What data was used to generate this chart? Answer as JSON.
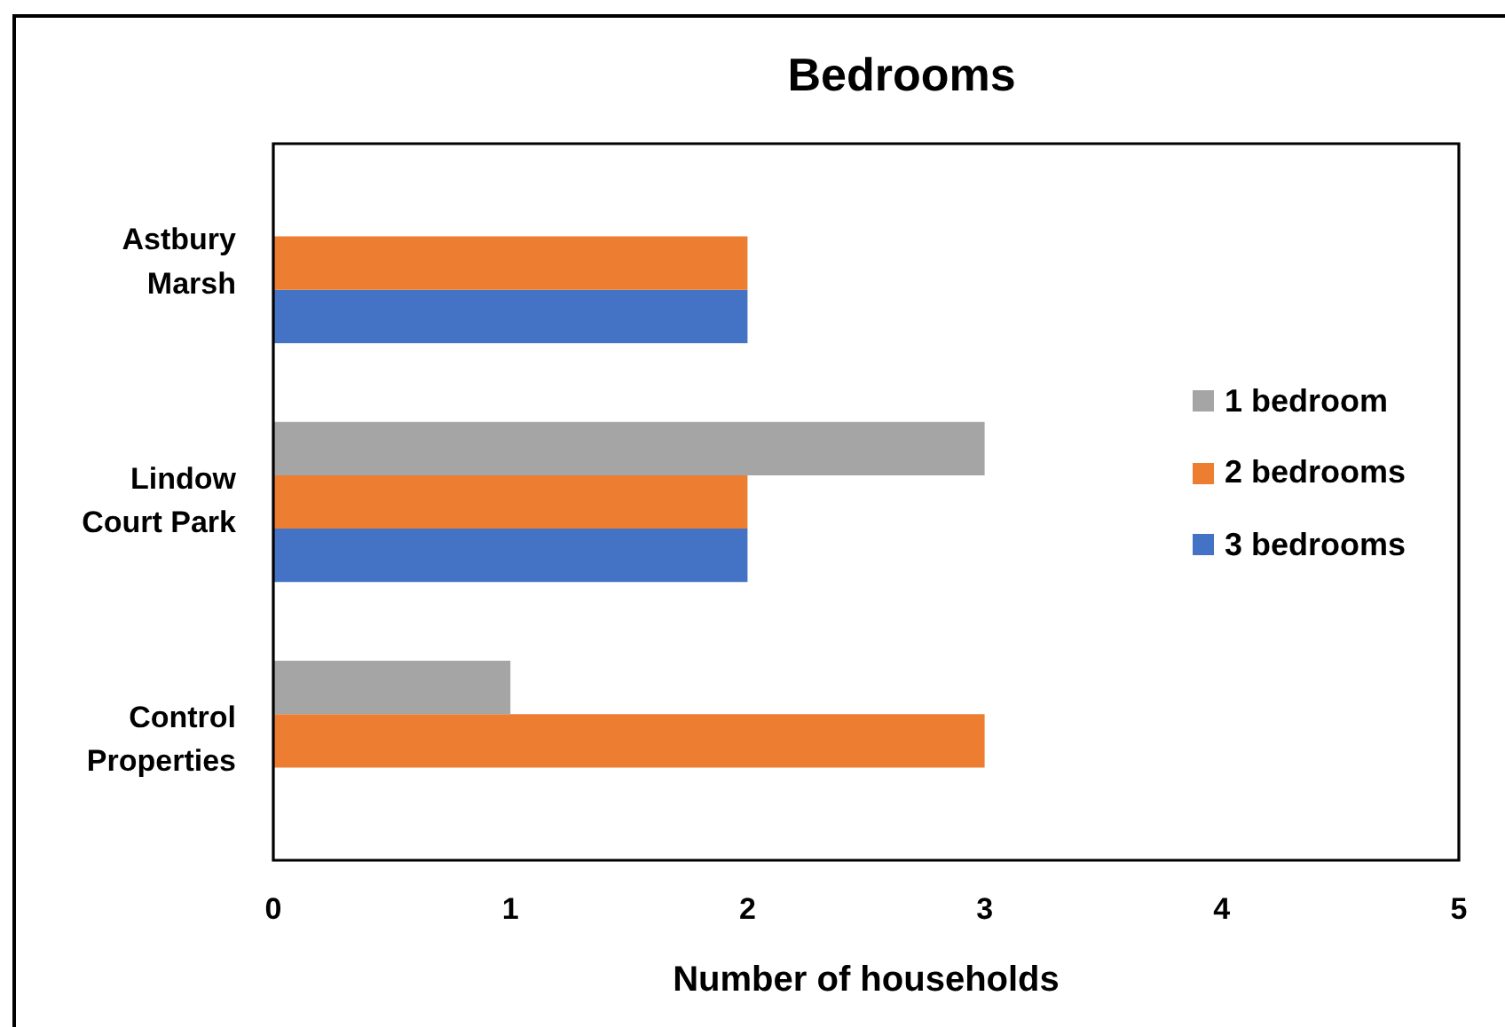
{
  "chart_data": {
    "type": "bar",
    "orientation": "horizontal",
    "title": "Bedrooms",
    "xlabel": "Number of households",
    "categories": [
      "Astbury Marsh",
      "Lindow Court Park",
      "Control Properties"
    ],
    "series": [
      {
        "name": "1 bedroom",
        "color": "#a5a5a5",
        "values": [
          0,
          3,
          1
        ]
      },
      {
        "name": "2 bedrooms",
        "color": "#ed7d31",
        "values": [
          2,
          2,
          3
        ]
      },
      {
        "name": "3 bedrooms",
        "color": "#4472c4",
        "values": [
          2,
          2,
          0
        ]
      }
    ],
    "xlim": [
      0,
      5
    ],
    "xticks": [
      0,
      1,
      2,
      3,
      4,
      5
    ],
    "grid": false,
    "legend": "right"
  }
}
